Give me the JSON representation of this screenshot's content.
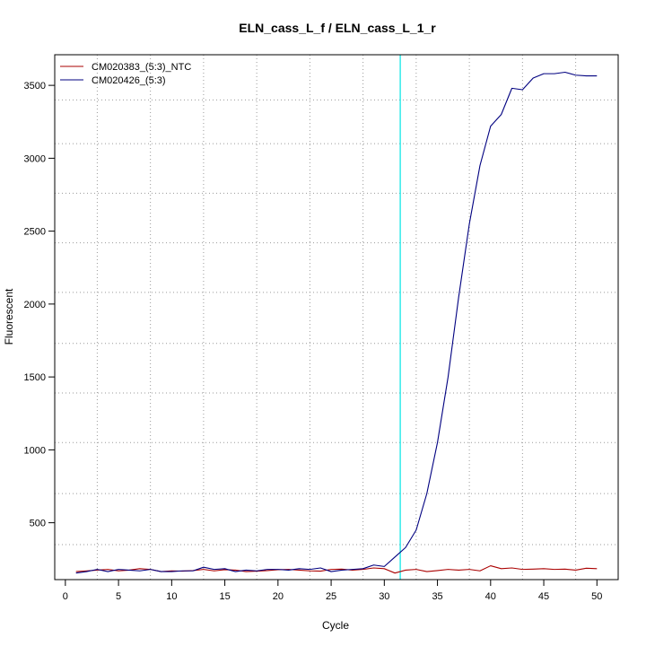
{
  "chart_data": {
    "type": "line",
    "title": "ELN_cass_L_f / ELN_cass_L_1_r",
    "xlabel": "Cycle",
    "ylabel": "Fluorescent",
    "xlim": [
      -1,
      52
    ],
    "ylim": [
      110,
      3710
    ],
    "x_ticks": [
      0,
      5,
      10,
      15,
      20,
      25,
      30,
      35,
      40,
      45,
      50
    ],
    "y_ticks": [
      500,
      1000,
      1500,
      2000,
      2500,
      3000,
      3500
    ],
    "x_grid": [
      3,
      8,
      13,
      18,
      23,
      28,
      33,
      38,
      43,
      48
    ],
    "y_grid": [
      350,
      700,
      1050,
      1390,
      1730,
      2080,
      2420,
      2760,
      3100,
      3400
    ],
    "grid": true,
    "legend_position": "top-left",
    "threshold": {
      "x": 31.5,
      "color": "#00e5e5"
    },
    "x": [
      1,
      2,
      3,
      4,
      5,
      6,
      7,
      8,
      9,
      10,
      11,
      12,
      13,
      14,
      15,
      16,
      17,
      18,
      19,
      20,
      21,
      22,
      23,
      24,
      25,
      26,
      27,
      28,
      29,
      30,
      31,
      32,
      33,
      34,
      35,
      36,
      37,
      38,
      39,
      40,
      41,
      42,
      43,
      44,
      45,
      46,
      47,
      48,
      49,
      50
    ],
    "series": [
      {
        "name": "CM020383_(5:3)_NTC",
        "color": "#aa0000",
        "values": [
          165,
          170,
          175,
          180,
          170,
          175,
          185,
          180,
          165,
          170,
          168,
          172,
          180,
          170,
          178,
          175,
          165,
          168,
          172,
          178,
          180,
          175,
          170,
          168,
          180,
          182,
          175,
          180,
          190,
          185,
          155,
          175,
          180,
          165,
          172,
          180,
          175,
          180,
          170,
          205,
          185,
          190,
          180,
          182,
          185,
          180,
          182,
          175,
          188,
          185
        ]
      },
      {
        "name": "CM020426_(5:3)",
        "color": "#000080",
        "values": [
          155,
          165,
          180,
          165,
          180,
          175,
          170,
          180,
          165,
          165,
          170,
          170,
          195,
          180,
          185,
          165,
          175,
          170,
          180,
          180,
          175,
          185,
          180,
          190,
          165,
          175,
          180,
          185,
          210,
          200,
          265,
          330,
          450,
          700,
          1050,
          1500,
          2050,
          2550,
          2950,
          3220,
          3300,
          3480,
          3470,
          3550,
          3580,
          3580,
          3590,
          3570,
          3565,
          3565
        ]
      }
    ]
  }
}
